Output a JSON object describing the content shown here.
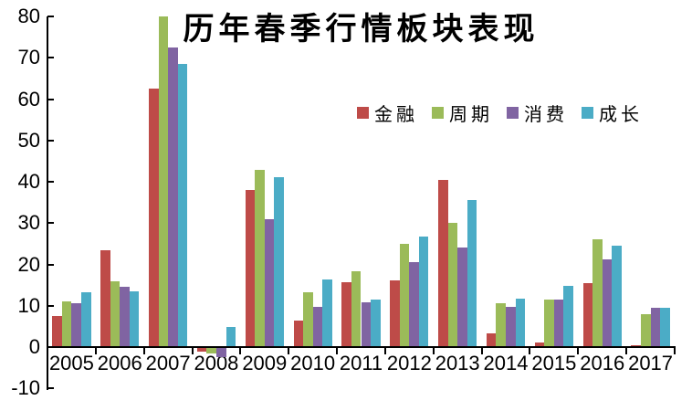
{
  "chart_data": {
    "type": "bar",
    "title": "历年春季行情板块表现",
    "categories": [
      "2005",
      "2006",
      "2007",
      "2008",
      "2009",
      "2010",
      "2011",
      "2012",
      "2013",
      "2014",
      "2015",
      "2016",
      "2017"
    ],
    "series": [
      {
        "key": "finance",
        "name": "金融",
        "color": "#BE4B48",
        "values": [
          7.5,
          23.5,
          62.5,
          -1.0,
          38.0,
          6.3,
          15.8,
          16.2,
          40.5,
          3.3,
          1.2,
          15.5,
          0.5
        ]
      },
      {
        "key": "cyclical",
        "name": "周期",
        "color": "#9BBB59",
        "values": [
          11.0,
          16.0,
          80.0,
          -1.5,
          42.8,
          13.3,
          18.3,
          25.0,
          30.0,
          10.5,
          11.5,
          26.0,
          8.0
        ]
      },
      {
        "key": "consumer",
        "name": "消费",
        "color": "#8064A2",
        "values": [
          10.5,
          14.5,
          72.5,
          -2.5,
          31.0,
          9.7,
          10.8,
          20.5,
          24.0,
          9.7,
          11.5,
          21.3,
          9.5
        ]
      },
      {
        "key": "growth",
        "name": "成长",
        "color": "#4BACC6",
        "values": [
          13.3,
          13.5,
          68.5,
          4.8,
          41.2,
          16.3,
          11.5,
          26.8,
          35.5,
          11.8,
          14.8,
          24.5,
          9.5
        ]
      }
    ],
    "xlabel": "",
    "ylabel": "",
    "ylim": [
      -10,
      80
    ],
    "yticks": [
      80,
      70,
      60,
      50,
      40,
      30,
      20,
      10,
      0,
      -10
    ],
    "grid": false,
    "legend_position": "inside-top-right",
    "axis_color": "#000000",
    "background_color": "#ffffff"
  }
}
